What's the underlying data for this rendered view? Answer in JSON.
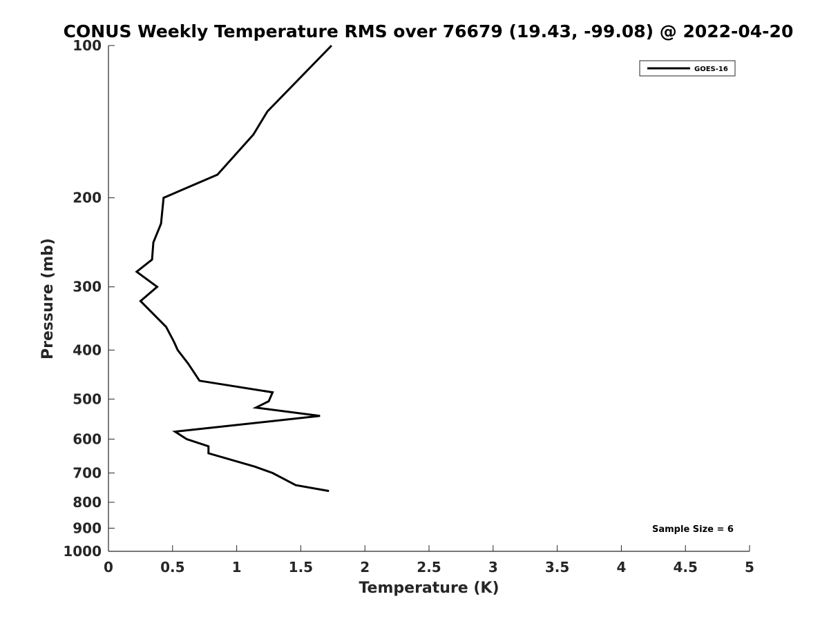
{
  "chart_data": {
    "type": "line",
    "title": "CONUS Weekly Temperature RMS over 76679 (19.43, -99.08) @ 2022-04-20",
    "xlabel": "Temperature (K)",
    "ylabel": "Pressure (mb)",
    "xlim": [
      0,
      5
    ],
    "ylim": [
      1000,
      100
    ],
    "yscale": "log",
    "y_reversed": true,
    "xticks": [
      0,
      0.5,
      1,
      1.5,
      2,
      2.5,
      3,
      3.5,
      4,
      4.5,
      5
    ],
    "xtick_labels": [
      "0",
      "0.5",
      "1",
      "1.5",
      "2",
      "2.5",
      "3",
      "3.5",
      "4",
      "4.5",
      "5"
    ],
    "yticks": [
      100,
      200,
      300,
      400,
      500,
      600,
      700,
      800,
      900,
      1000
    ],
    "ytick_labels": [
      "100",
      "200",
      "300",
      "400",
      "500",
      "600",
      "700",
      "800",
      "900",
      "1000"
    ],
    "grid": false,
    "legend_position": "top-right",
    "series": [
      {
        "name": "GOES-16",
        "color": "#000000",
        "points": [
          {
            "x": 1.74,
            "y": 100
          },
          {
            "x": 1.24,
            "y": 135
          },
          {
            "x": 1.13,
            "y": 150
          },
          {
            "x": 0.85,
            "y": 180
          },
          {
            "x": 0.43,
            "y": 200
          },
          {
            "x": 0.41,
            "y": 225
          },
          {
            "x": 0.35,
            "y": 245
          },
          {
            "x": 0.34,
            "y": 265
          },
          {
            "x": 0.22,
            "y": 280
          },
          {
            "x": 0.38,
            "y": 300
          },
          {
            "x": 0.25,
            "y": 320
          },
          {
            "x": 0.45,
            "y": 360
          },
          {
            "x": 0.51,
            "y": 385
          },
          {
            "x": 0.54,
            "y": 400
          },
          {
            "x": 0.62,
            "y": 425
          },
          {
            "x": 0.66,
            "y": 440
          },
          {
            "x": 0.71,
            "y": 460
          },
          {
            "x": 1.28,
            "y": 485
          },
          {
            "x": 1.25,
            "y": 505
          },
          {
            "x": 1.15,
            "y": 520
          },
          {
            "x": 1.65,
            "y": 540
          },
          {
            "x": 0.52,
            "y": 580
          },
          {
            "x": 0.61,
            "y": 600
          },
          {
            "x": 0.78,
            "y": 620
          },
          {
            "x": 0.78,
            "y": 640
          },
          {
            "x": 1.14,
            "y": 680
          },
          {
            "x": 1.28,
            "y": 700
          },
          {
            "x": 1.46,
            "y": 740
          },
          {
            "x": 1.72,
            "y": 760
          }
        ]
      }
    ],
    "annotations": [
      {
        "text": "Sample Size = 6",
        "position": "bottom-right"
      }
    ]
  }
}
